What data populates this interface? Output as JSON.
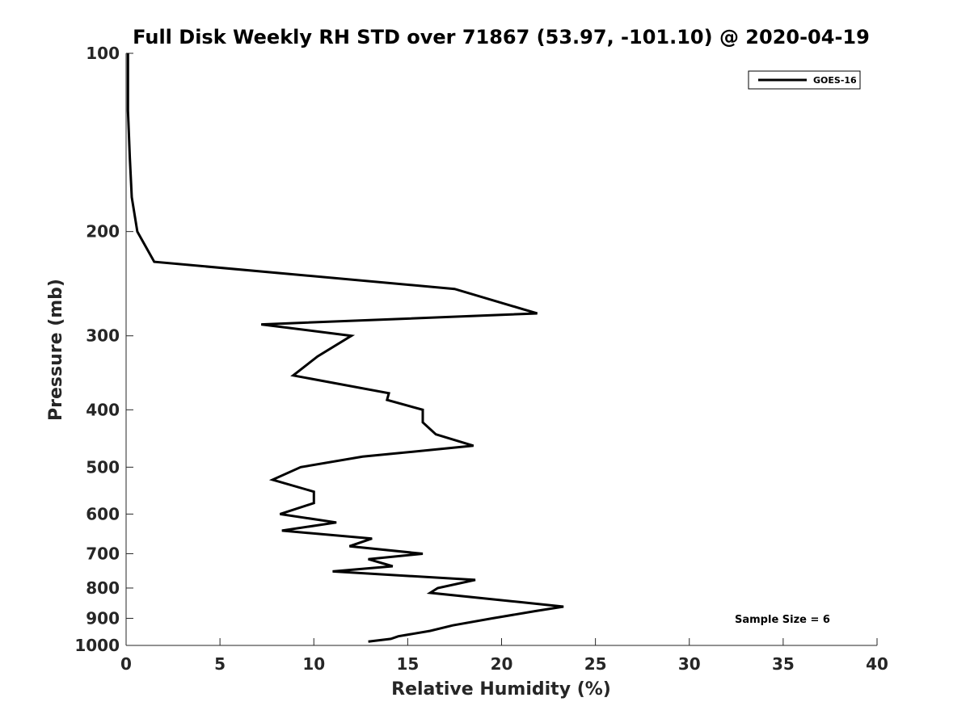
{
  "chart_data": {
    "type": "line",
    "title": "Full Disk Weekly RH STD over 71867 (53.97, -101.10) @ 2020-04-19",
    "xlabel": "Relative Humidity (%)",
    "ylabel": "Pressure (mb)",
    "xlim": [
      0,
      40
    ],
    "ylim": [
      100,
      1000
    ],
    "y_scale": "log",
    "y_reversed": true,
    "x_ticks": [
      "0",
      "5",
      "10",
      "15",
      "20",
      "25",
      "30",
      "35",
      "40"
    ],
    "y_ticks": [
      "100",
      "200",
      "300",
      "400",
      "500",
      "600",
      "700",
      "800",
      "900",
      "1000"
    ],
    "grid": false,
    "legend_position": "top-right",
    "annotation": "Sample Size = 6",
    "series": [
      {
        "name": "GOES-16",
        "color": "#000000",
        "points": [
          [
            0.1,
            100
          ],
          [
            0.1,
            125
          ],
          [
            0.2,
            150
          ],
          [
            0.3,
            175
          ],
          [
            0.6,
            200
          ],
          [
            1.5,
            225
          ],
          [
            17.5,
            250
          ],
          [
            21.9,
            275
          ],
          [
            7.2,
            287
          ],
          [
            12.0,
            300
          ],
          [
            10.2,
            325
          ],
          [
            8.9,
            350
          ],
          [
            14.0,
            375
          ],
          [
            13.9,
            385
          ],
          [
            15.8,
            400
          ],
          [
            15.8,
            420
          ],
          [
            16.5,
            440
          ],
          [
            18.5,
            460
          ],
          [
            12.6,
            480
          ],
          [
            9.3,
            500
          ],
          [
            7.8,
            525
          ],
          [
            10.0,
            550
          ],
          [
            10.0,
            575
          ],
          [
            8.2,
            600
          ],
          [
            11.2,
            620
          ],
          [
            8.3,
            640
          ],
          [
            13.1,
            660
          ],
          [
            11.9,
            680
          ],
          [
            15.8,
            700
          ],
          [
            12.9,
            715
          ],
          [
            14.2,
            735
          ],
          [
            11.0,
            750
          ],
          [
            18.6,
            775
          ],
          [
            16.6,
            800
          ],
          [
            16.2,
            815
          ],
          [
            21.0,
            845
          ],
          [
            23.3,
            860
          ],
          [
            21.8,
            875
          ],
          [
            19.5,
            900
          ],
          [
            17.4,
            925
          ],
          [
            16.2,
            945
          ],
          [
            14.5,
            965
          ],
          [
            14.1,
            975
          ],
          [
            12.9,
            985
          ]
        ]
      }
    ]
  }
}
